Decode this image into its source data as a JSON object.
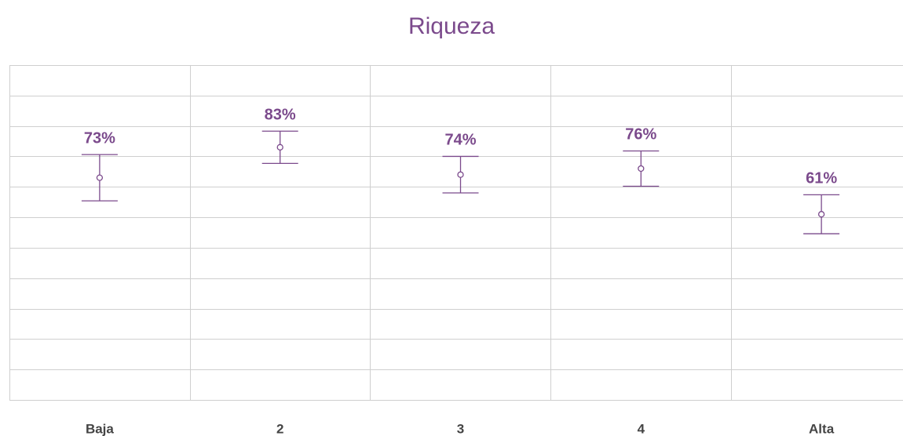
{
  "chart_data": {
    "type": "errorbar",
    "title": "Riqueza",
    "categories": [
      "Baja",
      "2",
      "3",
      "4",
      "Alta"
    ],
    "values": [
      73,
      83,
      74,
      76,
      61
    ],
    "value_labels": [
      "73%",
      "83%",
      "74%",
      "76%",
      "61%"
    ],
    "errors": [
      7.6,
      5.3,
      6.0,
      5.8,
      6.4
    ],
    "color": "#7b4a8c",
    "ylim": [
      0,
      110
    ],
    "yticks": [
      0,
      10,
      20,
      30,
      40,
      50,
      60,
      70,
      80,
      90,
      100,
      110
    ],
    "grid": true
  }
}
